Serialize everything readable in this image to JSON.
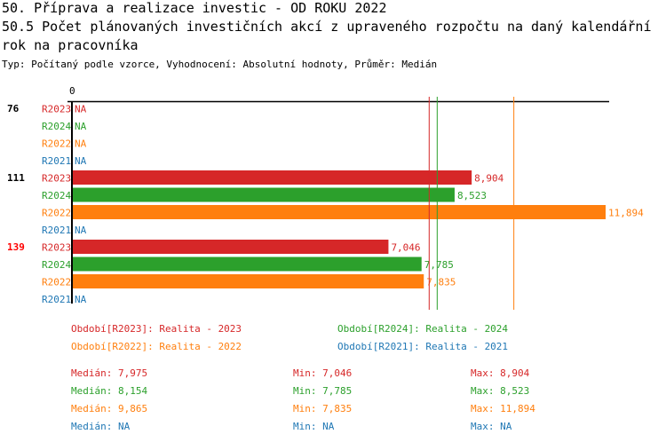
{
  "title": "50. Příprava a realizace investic - OD ROKU 2022",
  "subtitle_line1": "50.5 Počet plánovaných investičních akcí z upraveného rozpočtu na daný kalendářní",
  "subtitle_line2": " rok na pracovníka",
  "type_line": "Typ: Počítaný podle vzorce, Vyhodnocení: Absolutní hodnoty, Průměr: Medián",
  "colors": {
    "R2023": "#d62728",
    "R2024": "#2ca02c",
    "R2022": "#ff7f0e",
    "R2021": "#1f77b4"
  },
  "chart_data": {
    "type": "bar",
    "orientation": "horizontal",
    "x_tick_labels": [
      "0"
    ],
    "xlim": [
      0,
      11894
    ],
    "categories": [
      {
        "label": "76",
        "highlight": false
      },
      {
        "label": "111",
        "highlight": false
      },
      {
        "label": "139",
        "highlight": true
      }
    ],
    "series": [
      {
        "name": "R2023",
        "values": [
          null,
          8904,
          7046
        ],
        "labels": [
          "NA",
          "8,904",
          "7,046"
        ]
      },
      {
        "name": "R2024",
        "values": [
          null,
          8523,
          7785
        ],
        "labels": [
          "NA",
          "8,523",
          "7,785"
        ]
      },
      {
        "name": "R2022",
        "values": [
          null,
          11894,
          7835
        ],
        "labels": [
          "NA",
          "11,894",
          "7,835"
        ]
      },
      {
        "name": "R2021",
        "values": [
          null,
          null,
          null
        ],
        "labels": [
          "NA",
          "NA",
          "NA"
        ]
      }
    ],
    "medians": {
      "R2023": 7975,
      "R2024": 8154,
      "R2022": 9865
    }
  },
  "legend": [
    "Období[R2023]: Realita - 2023",
    "Období[R2024]: Realita - 2024",
    "Období[R2022]: Realita - 2022",
    "Období[R2021]: Realita - 2021"
  ],
  "stats": [
    {
      "series": "R2023",
      "median": "Medián: 7,975",
      "min": "Min: 7,046",
      "max": "Max: 8,904"
    },
    {
      "series": "R2024",
      "median": "Medián: 8,154",
      "min": "Min: 7,785",
      "max": "Max: 8,523"
    },
    {
      "series": "R2022",
      "median": "Medián: 9,865",
      "min": "Min: 7,835",
      "max": "Max: 11,894"
    },
    {
      "series": "R2021",
      "median": "Medián: NA",
      "min": "Min: NA",
      "max": "Max: NA"
    }
  ]
}
